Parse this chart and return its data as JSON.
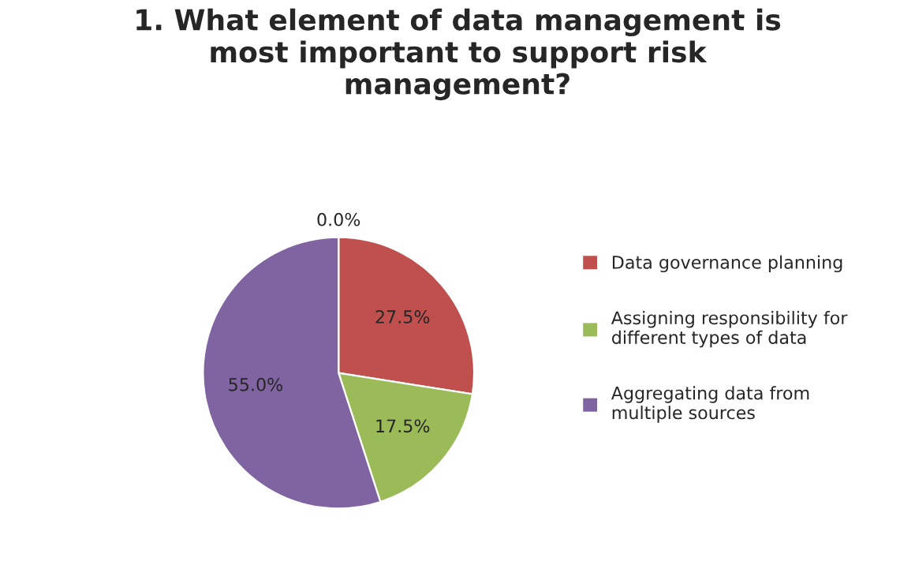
{
  "chart_data": {
    "type": "pie",
    "title": "1. What element of data management is\nmost important to support risk\nmanagement?",
    "categories": [
      null,
      "Data governance planning",
      "Assigning responsibility for\ndifferent types of data",
      "Aggregating data from\nmultiple sources"
    ],
    "values": [
      0,
      27.5,
      17.5,
      55
    ],
    "value_labels": [
      "0.0%",
      "27.5%",
      "17.5%",
      "55.0%"
    ],
    "colors": [
      "#4f81bd",
      "#c0504d",
      "#9bbb59",
      "#8064a2"
    ],
    "legend": "right"
  }
}
